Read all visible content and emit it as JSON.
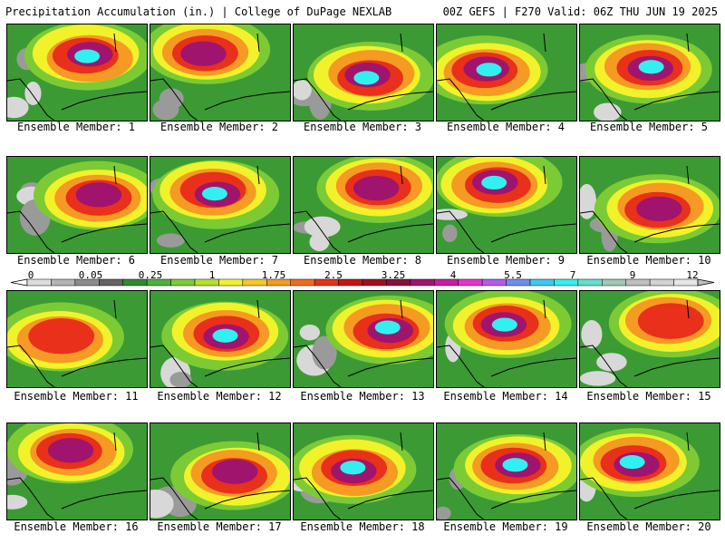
{
  "header": {
    "title": "Precipitation Accumulation (in.) | College of DuPage NEXLAB",
    "run_info": "00Z GEFS | F270 Valid: 06Z THU JUN 19 2025"
  },
  "colorbar": {
    "tick_labels": [
      "0",
      "0.05",
      "0.25",
      "1",
      "1.75",
      "2.5",
      "3.25",
      "4",
      "5.5",
      "7",
      "9",
      "12"
    ],
    "colors": [
      "#dcdcdc",
      "#b4b4b4",
      "#8c8c8c",
      "#646464",
      "#2e8b2e",
      "#4fb23a",
      "#7ccb34",
      "#b8e02a",
      "#f2f22a",
      "#f5c82a",
      "#f59a22",
      "#f26a1c",
      "#e8301a",
      "#c81414",
      "#a00f1e",
      "#8a0f3c",
      "#a0146e",
      "#c81ea0",
      "#e632d2",
      "#b45af0",
      "#6e8cf5",
      "#3cc8f5",
      "#32f0f0",
      "#64e0c8",
      "#a0c8b4",
      "#bebebe",
      "#d2d2d2",
      "#e6e6e6"
    ]
  },
  "panels": [
    {
      "label": "Ensemble Member: 1",
      "peak": 4
    },
    {
      "label": "Ensemble Member: 2",
      "peak": 3
    },
    {
      "label": "Ensemble Member: 3",
      "peak": 4
    },
    {
      "label": "Ensemble Member: 4",
      "peak": 4
    },
    {
      "label": "Ensemble Member: 5",
      "peak": 4
    },
    {
      "label": "Ensemble Member: 6",
      "peak": 3
    },
    {
      "label": "Ensemble Member: 7",
      "peak": 4
    },
    {
      "label": "Ensemble Member: 8",
      "peak": 3
    },
    {
      "label": "Ensemble Member: 9",
      "peak": 4
    },
    {
      "label": "Ensemble Member: 10",
      "peak": 3
    },
    {
      "label": "Ensemble Member: 11",
      "peak": 2
    },
    {
      "label": "Ensemble Member: 12",
      "peak": 4
    },
    {
      "label": "Ensemble Member: 13",
      "peak": 4
    },
    {
      "label": "Ensemble Member: 14",
      "peak": 4
    },
    {
      "label": "Ensemble Member: 15",
      "peak": 2
    },
    {
      "label": "Ensemble Member: 16",
      "peak": 3
    },
    {
      "label": "Ensemble Member: 17",
      "peak": 3
    },
    {
      "label": "Ensemble Member: 18",
      "peak": 4
    },
    {
      "label": "Ensemble Member: 19",
      "peak": 4
    },
    {
      "label": "Ensemble Member: 20",
      "peak": 4
    }
  ]
}
